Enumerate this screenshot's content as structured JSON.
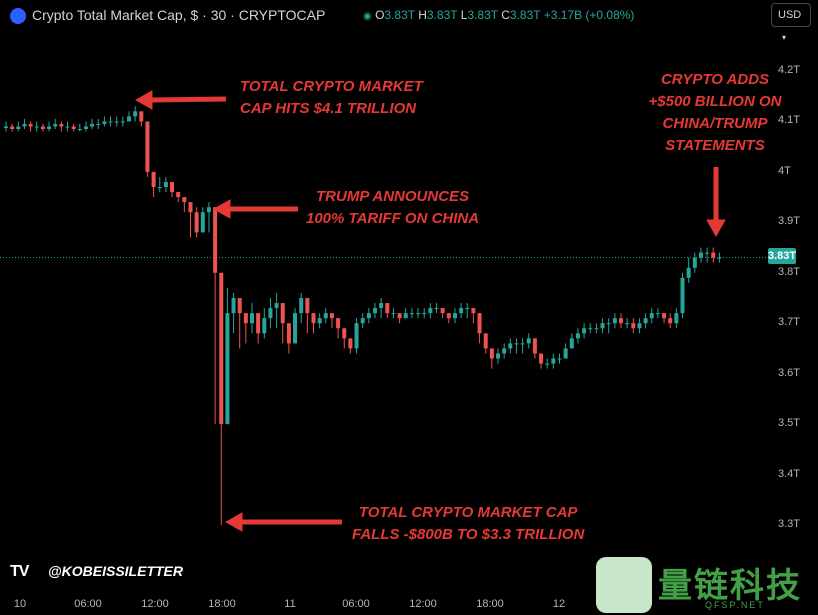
{
  "header": {
    "title": "Crypto Total Market Cap, $ · 30 · CRYPTOCAP",
    "ohlc": {
      "o_label": "O",
      "o_value": "3.83T",
      "h_label": "H",
      "h_value": "3.83T",
      "l_label": "L",
      "l_value": "3.83T",
      "c_label": "C",
      "c_value": "3.83T",
      "change": "+3.17B (+0.08%)"
    },
    "currency": "USD"
  },
  "annotations": {
    "peak_line1": "TOTAL CRYPTO MARKET",
    "peak_line2": "CAP HITS $4.1 TRILLION",
    "trump_line1": "TRUMP ANNOUNCES",
    "trump_line2": "100% TARIFF ON CHINA",
    "adds_line1": "CRYPTO ADDS",
    "adds_line2": "+$500 BILLION ON",
    "adds_line3": "CHINA/TRUMP",
    "adds_line4": "STATEMENTS",
    "fall_line1": "TOTAL CRYPTO MARKET CAP",
    "fall_line2": "FALLS -$800B TO $3.3 TRILLION"
  },
  "footer": {
    "tv_logo": "TV",
    "handle": "@KOBEISSILETTER",
    "watermark": "量链科技",
    "watermark_sub": "QFSP.NET"
  },
  "colors": {
    "up": "#26a69a",
    "down": "#ef5350",
    "annotation": "#e53935",
    "background": "#000000"
  },
  "chart_data": {
    "type": "candlestick",
    "title": "Crypto Total Market Cap, $ · 30 · CRYPTOCAP",
    "interval": "30",
    "ylim": [
      3.23,
      4.24
    ],
    "y_ticks": [
      "4.2T",
      "4.1T",
      "4T",
      "3.9T",
      "3.8T",
      "3.7T",
      "3.6T",
      "3.5T",
      "3.4T",
      "3.3T"
    ],
    "y_tick_values": [
      4.2,
      4.1,
      4.0,
      3.9,
      3.8,
      3.7,
      3.6,
      3.5,
      3.4,
      3.3
    ],
    "x_ticks": [
      "10",
      "06:00",
      "12:00",
      "18:00",
      "11",
      "06:00",
      "12:00",
      "18:00",
      "12",
      "06:00"
    ],
    "last_price": "3.83T",
    "closes": [
      4.09,
      4.085,
      4.09,
      4.095,
      4.09,
      4.09,
      4.085,
      4.09,
      4.095,
      4.09,
      4.09,
      4.085,
      4.085,
      4.09,
      4.095,
      4.095,
      4.1,
      4.1,
      4.1,
      4.1,
      4.11,
      4.12,
      4.1,
      4.0,
      3.97,
      3.97,
      3.98,
      3.96,
      3.95,
      3.94,
      3.92,
      3.88,
      3.92,
      3.93,
      3.8,
      3.5,
      3.72,
      3.75,
      3.72,
      3.7,
      3.72,
      3.68,
      3.71,
      3.73,
      3.74,
      3.7,
      3.66,
      3.72,
      3.75,
      3.72,
      3.7,
      3.71,
      3.72,
      3.71,
      3.69,
      3.67,
      3.65,
      3.7,
      3.71,
      3.72,
      3.73,
      3.74,
      3.72,
      3.72,
      3.71,
      3.72,
      3.72,
      3.72,
      3.72,
      3.73,
      3.73,
      3.72,
      3.71,
      3.72,
      3.73,
      3.73,
      3.72,
      3.68,
      3.65,
      3.63,
      3.64,
      3.65,
      3.66,
      3.66,
      3.66,
      3.67,
      3.64,
      3.62,
      3.62,
      3.63,
      3.63,
      3.65,
      3.67,
      3.68,
      3.69,
      3.69,
      3.69,
      3.7,
      3.7,
      3.71,
      3.7,
      3.7,
      3.69,
      3.7,
      3.71,
      3.72,
      3.72,
      3.71,
      3.7,
      3.72,
      3.79,
      3.81,
      3.83,
      3.84,
      3.84,
      3.83,
      3.83
    ],
    "lows": [
      4.08,
      4.08,
      4.08,
      4.085,
      4.08,
      4.08,
      4.08,
      4.08,
      4.085,
      4.08,
      4.08,
      4.08,
      4.08,
      4.08,
      4.085,
      4.085,
      4.09,
      4.09,
      4.09,
      4.09,
      4.1,
      4.1,
      4.09,
      3.99,
      3.95,
      3.96,
      3.96,
      3.95,
      3.94,
      3.92,
      3.87,
      3.87,
      3.9,
      3.88,
      3.5,
      3.3,
      3.64,
      3.68,
      3.65,
      3.66,
      3.68,
      3.66,
      3.67,
      3.69,
      3.69,
      3.66,
      3.64,
      3.66,
      3.7,
      3.68,
      3.68,
      3.69,
      3.7,
      3.69,
      3.67,
      3.65,
      3.64,
      3.64,
      3.69,
      3.7,
      3.71,
      3.71,
      3.71,
      3.71,
      3.7,
      3.71,
      3.71,
      3.71,
      3.71,
      3.71,
      3.72,
      3.71,
      3.7,
      3.7,
      3.71,
      3.71,
      3.7,
      3.66,
      3.64,
      3.61,
      3.62,
      3.63,
      3.64,
      3.64,
      3.64,
      3.65,
      3.63,
      3.61,
      3.61,
      3.61,
      3.62,
      3.63,
      3.65,
      3.66,
      3.67,
      3.68,
      3.68,
      3.68,
      3.68,
      3.69,
      3.69,
      3.69,
      3.68,
      3.68,
      3.69,
      3.7,
      3.71,
      3.7,
      3.69,
      3.69,
      3.71,
      3.78,
      3.8,
      3.82,
      3.82,
      3.82,
      3.82
    ],
    "highs": [
      4.1,
      4.095,
      4.1,
      4.105,
      4.1,
      4.1,
      4.095,
      4.1,
      4.105,
      4.1,
      4.1,
      4.095,
      4.095,
      4.1,
      4.105,
      4.105,
      4.11,
      4.11,
      4.11,
      4.11,
      4.12,
      4.13,
      4.12,
      4.1,
      4.0,
      3.99,
      3.99,
      3.98,
      3.96,
      3.95,
      3.93,
      3.93,
      3.93,
      3.94,
      3.93,
      3.78,
      3.77,
      3.76,
      3.75,
      3.72,
      3.74,
      3.72,
      3.73,
      3.75,
      3.76,
      3.74,
      3.7,
      3.73,
      3.76,
      3.75,
      3.72,
      3.72,
      3.73,
      3.72,
      3.71,
      3.69,
      3.67,
      3.71,
      3.72,
      3.73,
      3.74,
      3.75,
      3.74,
      3.73,
      3.72,
      3.73,
      3.73,
      3.73,
      3.73,
      3.74,
      3.74,
      3.73,
      3.72,
      3.73,
      3.74,
      3.74,
      3.73,
      3.72,
      3.68,
      3.65,
      3.65,
      3.66,
      3.67,
      3.67,
      3.67,
      3.68,
      3.67,
      3.64,
      3.63,
      3.64,
      3.64,
      3.66,
      3.68,
      3.69,
      3.7,
      3.7,
      3.7,
      3.71,
      3.71,
      3.72,
      3.72,
      3.71,
      3.71,
      3.71,
      3.72,
      3.73,
      3.73,
      3.72,
      3.72,
      3.73,
      3.8,
      3.83,
      3.84,
      3.85,
      3.85,
      3.85,
      3.84
    ]
  }
}
